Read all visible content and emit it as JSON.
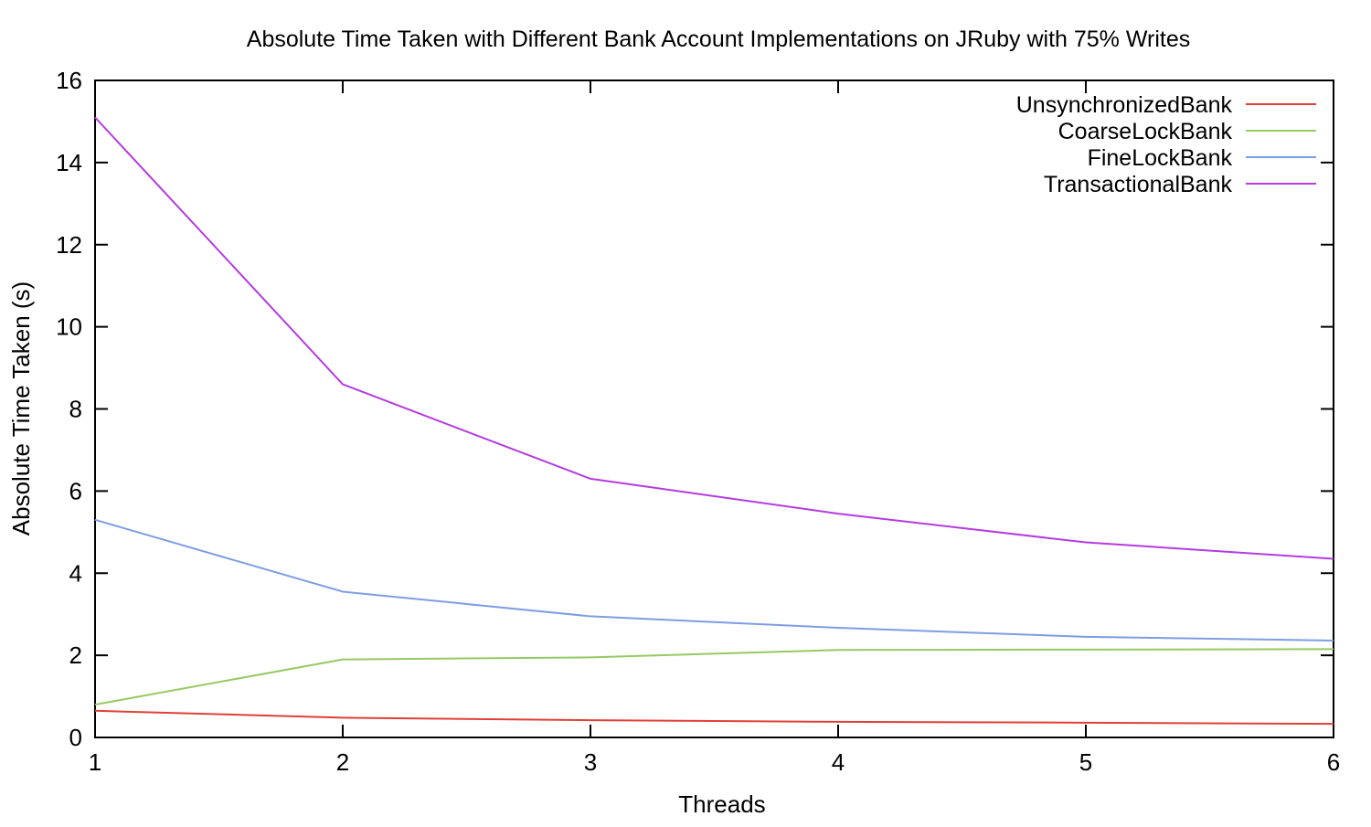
{
  "chart_data": {
    "type": "line",
    "title": "Absolute Time Taken with Different Bank Account Implementations on JRuby with 75% Writes",
    "xlabel": "Threads",
    "ylabel": "Absolute Time Taken (s)",
    "x": [
      1,
      2,
      3,
      4,
      5,
      6
    ],
    "xlim": [
      1,
      6
    ],
    "ylim": [
      0,
      16
    ],
    "x_ticks": [
      1,
      2,
      3,
      4,
      5,
      6
    ],
    "y_ticks": [
      0,
      2,
      4,
      6,
      8,
      10,
      12,
      14,
      16
    ],
    "grid": false,
    "legend_position": "top-right-inside",
    "axis_color": "#000000",
    "series": [
      {
        "name": "UnsynchronizedBank",
        "color": "#e04038",
        "values": [
          0.65,
          0.48,
          0.42,
          0.38,
          0.36,
          0.33
        ]
      },
      {
        "name": "CoarseLockBank",
        "color": "#96c963",
        "values": [
          0.8,
          1.9,
          1.95,
          2.13,
          2.14,
          2.15
        ]
      },
      {
        "name": "FineLockBank",
        "color": "#7d9de2",
        "values": [
          5.3,
          3.55,
          2.95,
          2.67,
          2.45,
          2.36
        ]
      },
      {
        "name": "TransactionalBank",
        "color": "#b43ce0",
        "values": [
          15.1,
          8.6,
          6.3,
          5.45,
          4.75,
          4.35
        ]
      }
    ]
  }
}
